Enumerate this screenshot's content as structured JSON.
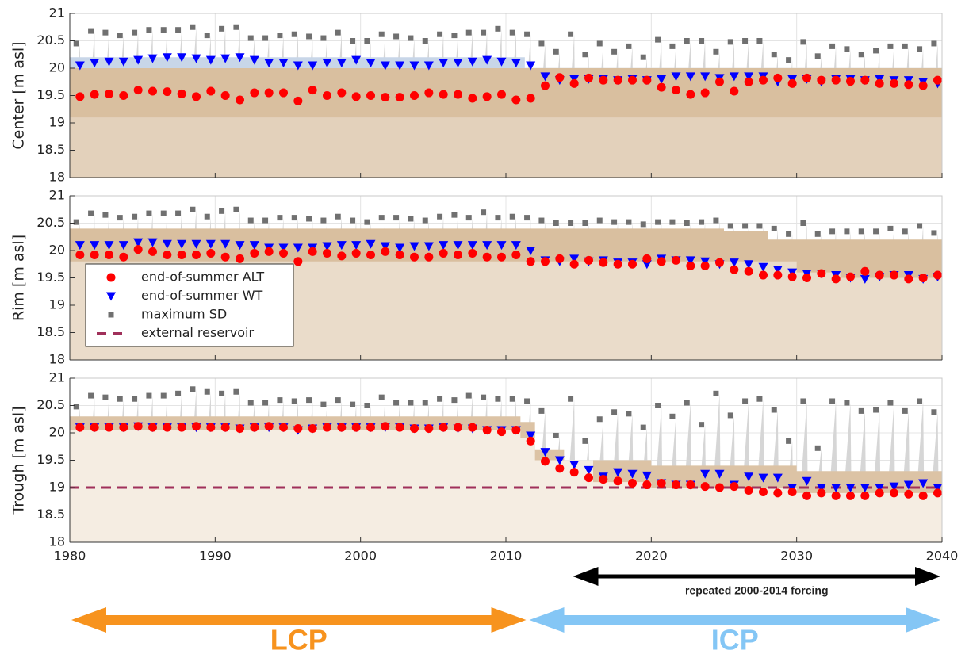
{
  "chart_data": [
    {
      "type": "scatter",
      "ylabel": "Center [m asl]",
      "xlim": [
        1980,
        2040
      ],
      "xticks": [
        1980,
        1990,
        2000,
        2010,
        2020,
        2030,
        2040
      ],
      "xtick_labels": false,
      "ylim": [
        18,
        21
      ],
      "yticks": [
        18,
        18.5,
        19,
        19.5,
        20,
        20.5,
        21
      ],
      "grid": true,
      "x": [
        1980.7,
        1981.7,
        1982.7,
        1983.7,
        1984.7,
        1985.7,
        1986.7,
        1987.7,
        1988.7,
        1989.7,
        1990.7,
        1991.7,
        1992.7,
        1993.7,
        1994.7,
        1995.7,
        1996.7,
        1997.7,
        1998.7,
        1999.7,
        2000.7,
        2001.7,
        2002.7,
        2003.7,
        2004.7,
        2005.7,
        2006.7,
        2007.7,
        2008.7,
        2009.7,
        2010.7,
        2011.7,
        2012.7,
        2013.7,
        2014.7,
        2015.7,
        2016.7,
        2017.7,
        2018.7,
        2019.7,
        2020.7,
        2021.7,
        2022.7,
        2023.7,
        2024.7,
        2025.7,
        2026.7,
        2027.7,
        2028.7,
        2029.7,
        2030.7,
        2031.7,
        2032.7,
        2033.7,
        2034.7,
        2035.7,
        2036.7,
        2037.7,
        2038.7,
        2039.7
      ],
      "areas": [
        {
          "color": "#c8d6e8",
          "x": [
            1980,
            2011.3
          ],
          "upper": [
            20.2,
            20.2
          ]
        },
        {
          "color": "#d9bf9f",
          "x": [
            1980,
            2040
          ],
          "upper": [
            20.0,
            20.0
          ]
        },
        {
          "color": "#e3d1bb",
          "x": [
            1980,
            2040
          ],
          "upper": [
            19.1,
            19.1
          ]
        }
      ],
      "series": [
        {
          "color": "#ff0000",
          "marker": "circle",
          "values": [
            19.48,
            19.52,
            19.53,
            19.5,
            19.6,
            19.58,
            19.57,
            19.53,
            19.48,
            19.58,
            19.5,
            19.42,
            19.55,
            19.55,
            19.55,
            19.4,
            19.6,
            19.5,
            19.55,
            19.48,
            19.5,
            19.47,
            19.47,
            19.5,
            19.55,
            19.52,
            19.52,
            19.45,
            19.48,
            19.52,
            19.42,
            19.45,
            19.68,
            19.83,
            19.72,
            19.82,
            19.78,
            19.78,
            19.78,
            19.78,
            19.65,
            19.6,
            19.52,
            19.55,
            19.75,
            19.58,
            19.75,
            19.78,
            19.82,
            19.72,
            19.82,
            19.78,
            19.78,
            19.76,
            19.78,
            19.72,
            19.72,
            19.7,
            19.68,
            19.78
          ]
        },
        {
          "color": "#0000ff",
          "marker": "triangle",
          "values": [
            20.05,
            20.1,
            20.12,
            20.12,
            20.15,
            20.18,
            20.2,
            20.2,
            20.18,
            20.15,
            20.18,
            20.2,
            20.15,
            20.1,
            20.1,
            20.05,
            20.05,
            20.1,
            20.1,
            20.15,
            20.1,
            20.05,
            20.05,
            20.05,
            20.05,
            20.1,
            20.1,
            20.12,
            20.15,
            20.12,
            20.1,
            20.05,
            19.85,
            19.78,
            19.8,
            19.8,
            19.8,
            19.78,
            19.8,
            19.78,
            19.8,
            19.85,
            19.85,
            19.85,
            19.82,
            19.85,
            19.85,
            19.85,
            19.75,
            19.8,
            19.8,
            19.75,
            19.8,
            19.8,
            19.78,
            19.8,
            19.78,
            19.78,
            19.75,
            19.72
          ]
        },
        {
          "color": "#707070",
          "marker": "square",
          "values": [
            20.45,
            20.68,
            20.65,
            20.6,
            20.65,
            20.7,
            20.7,
            20.7,
            20.75,
            20.6,
            20.72,
            20.75,
            20.55,
            20.55,
            20.6,
            20.62,
            20.58,
            20.55,
            20.65,
            20.5,
            20.5,
            20.62,
            20.58,
            20.55,
            20.5,
            20.62,
            20.6,
            20.65,
            20.65,
            20.72,
            20.65,
            20.62,
            20.45,
            20.3,
            20.62,
            20.25,
            20.45,
            20.3,
            20.4,
            20.2,
            20.52,
            20.4,
            20.5,
            20.5,
            20.3,
            20.48,
            20.5,
            20.5,
            20.25,
            20.15,
            20.48,
            20.22,
            20.4,
            20.35,
            20.25,
            20.32,
            20.4,
            20.4,
            20.35,
            20.45
          ]
        }
      ]
    },
    {
      "type": "scatter",
      "ylabel": "Rim [m asl]",
      "xlim": [
        1980,
        2040
      ],
      "xticks": [
        1980,
        1990,
        2000,
        2010,
        2020,
        2030,
        2040
      ],
      "xtick_labels": false,
      "ylim": [
        18,
        21
      ],
      "yticks": [
        18,
        18.5,
        19,
        19.5,
        20,
        20.5,
        21
      ],
      "grid": true,
      "legend": "left",
      "x": [
        1980.7,
        1981.7,
        1982.7,
        1983.7,
        1984.7,
        1985.7,
        1986.7,
        1987.7,
        1988.7,
        1989.7,
        1990.7,
        1991.7,
        1992.7,
        1993.7,
        1994.7,
        1995.7,
        1996.7,
        1997.7,
        1998.7,
        1999.7,
        2000.7,
        2001.7,
        2002.7,
        2003.7,
        2004.7,
        2005.7,
        2006.7,
        2007.7,
        2008.7,
        2009.7,
        2010.7,
        2011.7,
        2012.7,
        2013.7,
        2014.7,
        2015.7,
        2016.7,
        2017.7,
        2018.7,
        2019.7,
        2020.7,
        2021.7,
        2022.7,
        2023.7,
        2024.7,
        2025.7,
        2026.7,
        2027.7,
        2028.7,
        2029.7,
        2030.7,
        2031.7,
        2032.7,
        2033.7,
        2034.7,
        2035.7,
        2036.7,
        2037.7,
        2038.7,
        2039.7
      ],
      "areas": [
        {
          "color": "#d9bf9f",
          "x": [
            1980,
            2011,
            2025,
            2028,
            2040
          ],
          "upper": [
            20.4,
            20.4,
            20.35,
            20.2,
            20.2
          ]
        },
        {
          "color": "#eadcca",
          "x": [
            1980,
            2011,
            2015,
            2030,
            2033,
            2040
          ],
          "upper": [
            19.8,
            19.8,
            19.8,
            19.6,
            19.5,
            19.5
          ]
        }
      ],
      "series": [
        {
          "name": "end-of-summer ALT",
          "color": "#ff0000",
          "marker": "circle",
          "values": [
            19.92,
            19.92,
            19.92,
            19.88,
            20.02,
            19.98,
            19.92,
            19.92,
            19.92,
            19.95,
            19.88,
            19.85,
            19.95,
            19.98,
            19.95,
            19.8,
            19.98,
            19.95,
            19.9,
            19.95,
            19.92,
            19.98,
            19.92,
            19.88,
            19.88,
            19.95,
            19.92,
            19.95,
            19.88,
            19.88,
            19.92,
            19.8,
            19.8,
            19.85,
            19.75,
            19.82,
            19.78,
            19.75,
            19.75,
            19.85,
            19.8,
            19.82,
            19.72,
            19.72,
            19.78,
            19.65,
            19.62,
            19.55,
            19.55,
            19.52,
            19.5,
            19.58,
            19.48,
            19.52,
            19.62,
            19.55,
            19.55,
            19.48,
            19.5,
            19.55
          ]
        },
        {
          "name": "end-of-summer WT",
          "color": "#0000ff",
          "marker": "triangle",
          "values": [
            20.1,
            20.1,
            20.1,
            20.1,
            20.15,
            20.15,
            20.12,
            20.12,
            20.12,
            20.12,
            20.12,
            20.1,
            20.1,
            20.05,
            20.05,
            20.05,
            20.05,
            20.08,
            20.1,
            20.1,
            20.12,
            20.08,
            20.05,
            20.08,
            20.08,
            20.1,
            20.1,
            20.1,
            20.1,
            20.1,
            20.1,
            20.0,
            19.82,
            19.8,
            19.85,
            19.8,
            19.82,
            19.78,
            19.78,
            19.75,
            19.85,
            19.82,
            19.82,
            19.8,
            19.75,
            19.78,
            19.75,
            19.7,
            19.65,
            19.6,
            19.58,
            19.58,
            19.55,
            19.5,
            19.48,
            19.52,
            19.55,
            19.55,
            19.48,
            19.52
          ]
        },
        {
          "name": "maximum SD",
          "color": "#707070",
          "marker": "square",
          "values": [
            20.52,
            20.68,
            20.65,
            20.6,
            20.62,
            20.68,
            20.68,
            20.68,
            20.75,
            20.62,
            20.72,
            20.75,
            20.55,
            20.55,
            20.6,
            20.6,
            20.58,
            20.55,
            20.62,
            20.55,
            20.52,
            20.6,
            20.6,
            20.58,
            20.55,
            20.62,
            20.65,
            20.6,
            20.7,
            20.6,
            20.62,
            20.6,
            20.55,
            20.5,
            20.5,
            20.5,
            20.55,
            20.52,
            20.52,
            20.48,
            20.52,
            20.52,
            20.5,
            20.52,
            20.55,
            20.45,
            20.45,
            20.45,
            20.4,
            20.3,
            20.5,
            20.3,
            20.35,
            20.35,
            20.35,
            20.35,
            20.4,
            20.35,
            20.45,
            20.32
          ]
        }
      ]
    },
    {
      "type": "scatter",
      "ylabel": "Trough [m asl]",
      "xlim": [
        1980,
        2040
      ],
      "xticks": [
        1980,
        1990,
        2000,
        2010,
        2020,
        2030,
        2040
      ],
      "xtick_labels": true,
      "ylim": [
        18,
        21
      ],
      "yticks": [
        18,
        18.5,
        19,
        19.5,
        20,
        20.5,
        21
      ],
      "grid": true,
      "x": [
        1980.7,
        1981.7,
        1982.7,
        1983.7,
        1984.7,
        1985.7,
        1986.7,
        1987.7,
        1988.7,
        1989.7,
        1990.7,
        1991.7,
        1992.7,
        1993.7,
        1994.7,
        1995.7,
        1996.7,
        1997.7,
        1998.7,
        1999.7,
        2000.7,
        2001.7,
        2002.7,
        2003.7,
        2004.7,
        2005.7,
        2006.7,
        2007.7,
        2008.7,
        2009.7,
        2010.7,
        2011.7,
        2012.7,
        2013.7,
        2014.7,
        2015.7,
        2016.7,
        2017.7,
        2018.7,
        2019.7,
        2020.7,
        2021.7,
        2022.7,
        2023.7,
        2024.7,
        2025.7,
        2026.7,
        2027.7,
        2028.7,
        2029.7,
        2030.7,
        2031.7,
        2032.7,
        2033.7,
        2034.7,
        2035.7,
        2036.7,
        2037.7,
        2038.7,
        2039.7
      ],
      "areas": [
        {
          "color": "#dcc3a5",
          "x": [
            1980,
            2010,
            2011,
            2012,
            2014,
            2020,
            2030,
            2040
          ],
          "upper": [
            20.3,
            20.3,
            20.2,
            19.7,
            19.5,
            19.4,
            19.3,
            19.3
          ]
        },
        {
          "color": "#f5ede2",
          "x": [
            1980,
            2010,
            2011,
            2012,
            2016,
            2020,
            2030,
            2040
          ],
          "upper": [
            20.05,
            20.05,
            19.9,
            19.5,
            19.1,
            19.0,
            18.9,
            18.9
          ]
        }
      ],
      "series": [
        {
          "color": "#ff0000",
          "marker": "circle",
          "values": [
            20.1,
            20.1,
            20.1,
            20.1,
            20.12,
            20.1,
            20.1,
            20.1,
            20.12,
            20.1,
            20.1,
            20.08,
            20.1,
            20.12,
            20.1,
            20.08,
            20.08,
            20.1,
            20.1,
            20.1,
            20.1,
            20.12,
            20.1,
            20.08,
            20.08,
            20.1,
            20.1,
            20.1,
            20.05,
            20.02,
            20.05,
            19.85,
            19.48,
            19.35,
            19.28,
            19.18,
            19.15,
            19.12,
            19.08,
            19.05,
            19.08,
            19.05,
            19.05,
            19.02,
            19.0,
            19.02,
            18.95,
            18.92,
            18.9,
            18.92,
            18.85,
            18.9,
            18.85,
            18.85,
            18.85,
            18.9,
            18.9,
            18.88,
            18.85,
            18.9
          ]
        },
        {
          "color": "#0000ff",
          "marker": "triangle",
          "values": [
            20.1,
            20.1,
            20.1,
            20.1,
            20.12,
            20.1,
            20.1,
            20.1,
            20.1,
            20.1,
            20.1,
            20.08,
            20.1,
            20.1,
            20.1,
            20.05,
            20.08,
            20.1,
            20.1,
            20.1,
            20.1,
            20.1,
            20.1,
            20.08,
            20.08,
            20.1,
            20.08,
            20.08,
            20.05,
            20.05,
            20.05,
            19.95,
            19.65,
            19.5,
            19.42,
            19.32,
            19.2,
            19.28,
            19.25,
            19.22,
            19.08,
            19.05,
            19.05,
            19.25,
            19.25,
            19.05,
            19.2,
            19.18,
            19.18,
            19.0,
            19.12,
            19.0,
            19.0,
            19.0,
            19.0,
            19.0,
            19.02,
            19.05,
            19.08,
            19.0
          ]
        },
        {
          "color": "#707070",
          "marker": "square",
          "values": [
            20.48,
            20.68,
            20.65,
            20.62,
            20.62,
            20.68,
            20.68,
            20.72,
            20.8,
            20.75,
            20.72,
            20.75,
            20.55,
            20.55,
            20.6,
            20.58,
            20.6,
            20.52,
            20.6,
            20.52,
            20.5,
            20.65,
            20.55,
            20.55,
            20.55,
            20.62,
            20.6,
            20.68,
            20.65,
            20.62,
            20.62,
            20.58,
            20.4,
            19.95,
            20.62,
            19.85,
            20.25,
            20.38,
            20.35,
            20.1,
            20.5,
            20.3,
            20.55,
            20.15,
            20.72,
            20.32,
            20.58,
            20.62,
            20.42,
            19.85,
            20.58,
            19.72,
            20.58,
            20.55,
            20.4,
            20.42,
            20.55,
            20.4,
            20.58,
            20.38
          ]
        },
        {
          "name": "external reservoir",
          "color": "#a0305a",
          "marker": "dashed-line",
          "x": [
            1980,
            2040
          ],
          "values": [
            19,
            19
          ]
        }
      ]
    }
  ],
  "annotations": [
    {
      "text": "repeated 2000-2014 forcing",
      "span": [
        2014.5,
        2040
      ],
      "color": "#000000"
    },
    {
      "text": "LCP",
      "span": [
        1980,
        2011.5
      ],
      "color": "#f7931e"
    },
    {
      "text": "ICP",
      "span": [
        2011.5,
        2040
      ],
      "color": "#84c6f5"
    }
  ]
}
